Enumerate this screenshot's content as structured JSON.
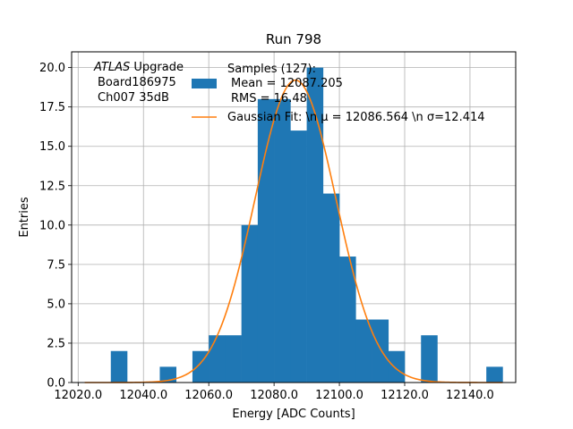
{
  "chart_data": {
    "type": "bar",
    "title": "Run 798",
    "xlabel": "Energy [ADC Counts]",
    "ylabel": "Entries",
    "xlim": [
      12018,
      12154
    ],
    "ylim": [
      0,
      21
    ],
    "xticks": [
      12020,
      12040,
      12060,
      12080,
      12100,
      12120,
      12140
    ],
    "xtick_labels": [
      "12020.0",
      "12040.0",
      "12060.0",
      "12080.0",
      "12100.0",
      "12120.0",
      "12140.0"
    ],
    "yticks": [
      0,
      2.5,
      5,
      7.5,
      10,
      12.5,
      15,
      17.5,
      20
    ],
    "ytick_labels": [
      "0.0",
      "2.5",
      "5.0",
      "7.5",
      "10.0",
      "12.5",
      "15.0",
      "17.5",
      "20.0"
    ],
    "grid": true,
    "bin_width": 5,
    "bins": [
      {
        "x": 12030,
        "count": 2
      },
      {
        "x": 12045,
        "count": 1
      },
      {
        "x": 12055,
        "count": 2
      },
      {
        "x": 12060,
        "count": 3
      },
      {
        "x": 12065,
        "count": 3
      },
      {
        "x": 12070,
        "count": 10
      },
      {
        "x": 12075,
        "count": 18
      },
      {
        "x": 12080,
        "count": 18
      },
      {
        "x": 12085,
        "count": 16
      },
      {
        "x": 12090,
        "count": 20
      },
      {
        "x": 12095,
        "count": 12
      },
      {
        "x": 12100,
        "count": 8
      },
      {
        "x": 12105,
        "count": 4
      },
      {
        "x": 12110,
        "count": 4
      },
      {
        "x": 12115,
        "count": 2
      },
      {
        "x": 12125,
        "count": 3
      },
      {
        "x": 12145,
        "count": 1
      }
    ],
    "histogram_color": "#1f77b4",
    "fit": {
      "mu": 12086.564,
      "sigma": 12.414,
      "amplitude": 19.2,
      "color": "#ff7f0e"
    },
    "annotation": {
      "italic": "ATLAS",
      "line1_rest": " Upgrade",
      "line2": "Board186975",
      "line3": "Ch007 35dB"
    },
    "legend": {
      "placement": "top-right",
      "samples_line1": "Samples (127):",
      "samples_line2": "Mean = 12087.205",
      "samples_line3": "RMS = 16.48",
      "fit_label": "Gaussian Fit: \\n μ = 12086.564 \\n σ=12.414"
    }
  }
}
